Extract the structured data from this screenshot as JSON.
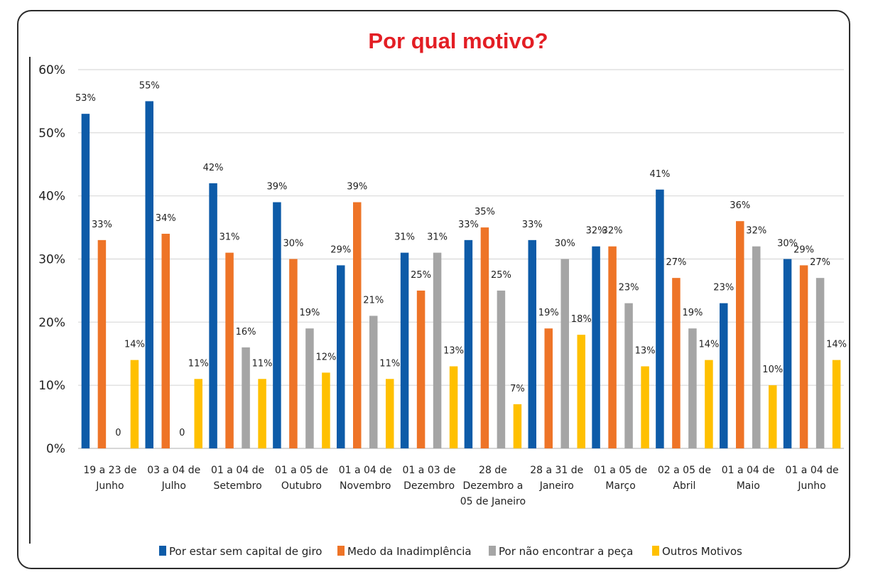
{
  "chart_data": {
    "type": "bar",
    "title": "Por qual motivo?",
    "categories": [
      [
        "19 a 23 de",
        "Junho"
      ],
      [
        "03 a 04 de",
        "Julho"
      ],
      [
        "01 a 04 de",
        "Setembro"
      ],
      [
        "01 a 05 de",
        "Outubro"
      ],
      [
        "01 a 04 de",
        "Novembro"
      ],
      [
        "01 a 03 de",
        "Dezembro"
      ],
      [
        "28 de",
        "Dezembro a",
        "05 de Janeiro"
      ],
      [
        "28 a 31 de",
        "Janeiro"
      ],
      [
        "01 a 05 de",
        "Março"
      ],
      [
        "02 a 05 de",
        "Abril"
      ],
      [
        "01 a 04 de",
        "Maio"
      ],
      [
        "01 a 04 de",
        "Junho"
      ]
    ],
    "series": [
      {
        "name": "Por estar sem capital de giro",
        "color": "#0d5ba8",
        "values": [
          53,
          55,
          42,
          39,
          29,
          31,
          33,
          33,
          32,
          41,
          23,
          30
        ],
        "labels": [
          "53%",
          "55%",
          "42%",
          "39%",
          "29%",
          "31%",
          "33%",
          "33%",
          "32%",
          "41%",
          "23%",
          "30%"
        ]
      },
      {
        "name": "Medo da Inadimplência",
        "color": "#ee7427",
        "values": [
          33,
          34,
          31,
          30,
          39,
          25,
          35,
          19,
          32,
          27,
          36,
          29
        ],
        "labels": [
          "33%",
          "34%",
          "31%",
          "30%",
          "39%",
          "25%",
          "35%",
          "19%",
          "32%",
          "27%",
          "36%",
          "29%"
        ]
      },
      {
        "name": "Por não encontrar a peça",
        "color": "#a5a5a5",
        "values": [
          0,
          0,
          16,
          19,
          21,
          31,
          25,
          30,
          23,
          19,
          32,
          27
        ],
        "labels": [
          "0",
          "0",
          "16%",
          "19%",
          "21%",
          "31%",
          "25%",
          "30%",
          "23%",
          "19%",
          "32%",
          "27%"
        ]
      },
      {
        "name": "Outros Motivos",
        "color": "#ffc000",
        "values": [
          14,
          11,
          11,
          12,
          11,
          13,
          7,
          18,
          13,
          14,
          10,
          14
        ],
        "labels": [
          "14%",
          "11%",
          "11%",
          "12%",
          "11%",
          "13%",
          "7%",
          "18%",
          "13%",
          "14%",
          "10%",
          "14%"
        ]
      }
    ],
    "yticks": [
      "0%",
      "10%",
      "20%",
      "30%",
      "40%",
      "50%",
      "60%"
    ],
    "ylim": [
      0,
      60
    ],
    "grid": true,
    "legend": "bottom"
  }
}
